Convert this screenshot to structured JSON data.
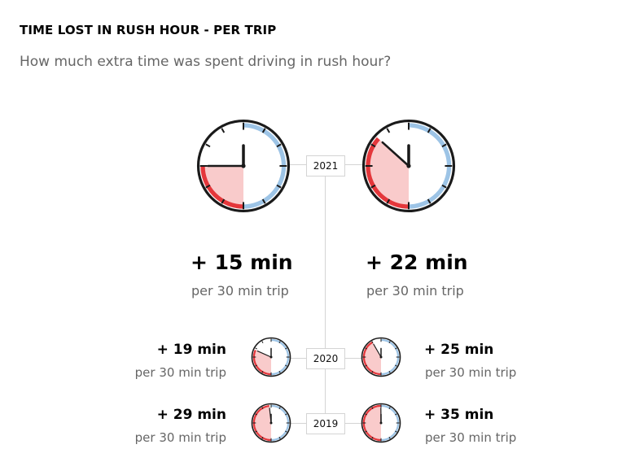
{
  "title": "TIME LOST IN RUSH HOUR - PER TRIP",
  "subtitle": "How much extra time was spent driving in rush hour?",
  "colors": {
    "red": "#e4373b",
    "pink": "#f9cbcb",
    "blue": "#9dc4e6",
    "ink": "#1a1a1a",
    "line": "#d4d4d4"
  },
  "chart_data": {
    "type": "table",
    "title": "TIME LOST IN RUSH HOUR - PER TRIP",
    "base_trip_min": 30,
    "years": [
      {
        "year": "2021",
        "left": {
          "extra_min": 15,
          "label": "+ 15 min",
          "sub": "per 30 min trip"
        },
        "right": {
          "extra_min": 22,
          "label": "+ 22 min",
          "sub": "per 30 min trip"
        }
      },
      {
        "year": "2020",
        "left": {
          "extra_min": 19,
          "label": "+ 19 min",
          "sub": "per 30 min trip"
        },
        "right": {
          "extra_min": 25,
          "label": "+ 25 min",
          "sub": "per 30 min trip"
        }
      },
      {
        "year": "2019",
        "left": {
          "extra_min": 29,
          "label": "+ 29 min",
          "sub": "per 30 min trip"
        },
        "right": {
          "extra_min": 35,
          "label": "+ 35 min",
          "sub": "per 30 min trip"
        }
      }
    ]
  }
}
